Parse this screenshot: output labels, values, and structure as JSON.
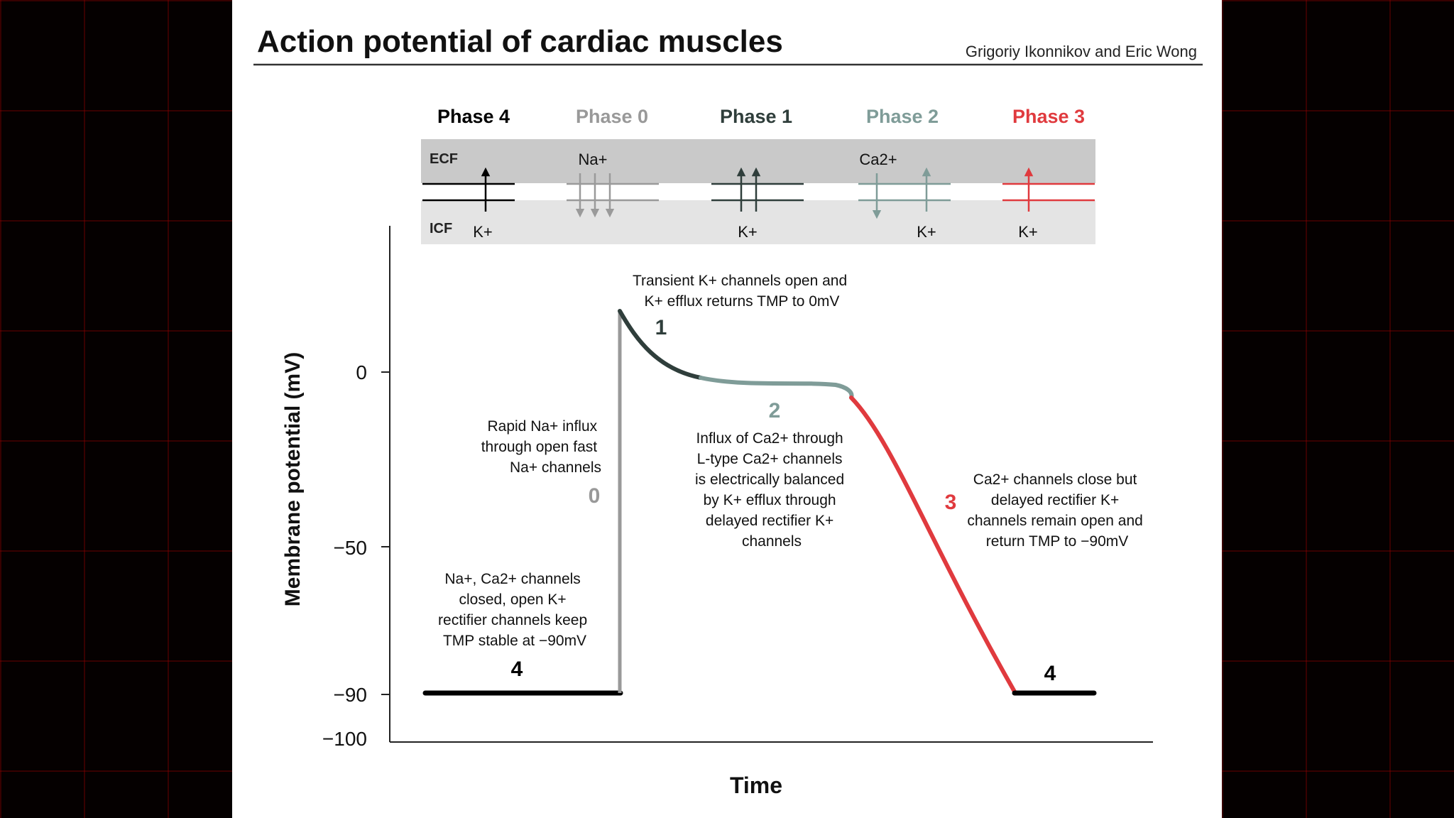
{
  "title": "Action potential of cardiac muscles",
  "authors": "Grigoriy Ikonnikov and Eric Wong",
  "colors": {
    "phase4": "#000000",
    "phase0": "#999999",
    "phase1": "#2f3e3b",
    "phase2": "#7f9c98",
    "phase3": "#e03a3e",
    "ecf_band": "#c9c9c9",
    "icf_band": "#e4e4e4"
  },
  "membrane": {
    "ecf_label": "ECF",
    "icf_label": "ICF"
  },
  "phases": [
    {
      "id": "4",
      "header": "Phase 4",
      "ions_top": "",
      "ions_bottom": "K+"
    },
    {
      "id": "0",
      "header": "Phase 0",
      "ions_top": "Na+",
      "ions_bottom": ""
    },
    {
      "id": "1",
      "header": "Phase 1",
      "ions_top": "",
      "ions_bottom": "K+"
    },
    {
      "id": "2",
      "header": "Phase 2",
      "ions_top": "Ca2+",
      "ions_bottom": "K+"
    },
    {
      "id": "3",
      "header": "Phase 3",
      "ions_top": "",
      "ions_bottom": "K+"
    }
  ],
  "axes": {
    "y_label": "Membrane potential (mV)",
    "x_label": "Time",
    "y_ticks": [
      "0",
      "−50",
      "−90",
      "−100"
    ]
  },
  "curve_markers": {
    "p4_left": "4",
    "p0": "0",
    "p1": "1",
    "p2": "2",
    "p3": "3",
    "p4_right": "4"
  },
  "annotations": {
    "phase1": [
      "Transient K+ channels open and",
      "K+ efflux returns TMP to 0mV"
    ],
    "phase0": [
      "Rapid Na+ influx",
      "through open fast",
      "Na+ channels"
    ],
    "phase2": [
      "Influx of Ca2+ through",
      "L-type Ca2+ channels",
      "is electrically balanced",
      "by K+ efflux through",
      "delayed rectifier K+",
      "channels"
    ],
    "phase3": [
      "Ca2+ channels close but",
      "delayed rectifier K+",
      "channels remain open and",
      "return TMP to −90mV"
    ],
    "phase4": [
      "Na+, Ca2+ channels",
      "closed, open K+",
      "rectifier channels keep",
      "TMP stable at −90mV"
    ]
  }
}
